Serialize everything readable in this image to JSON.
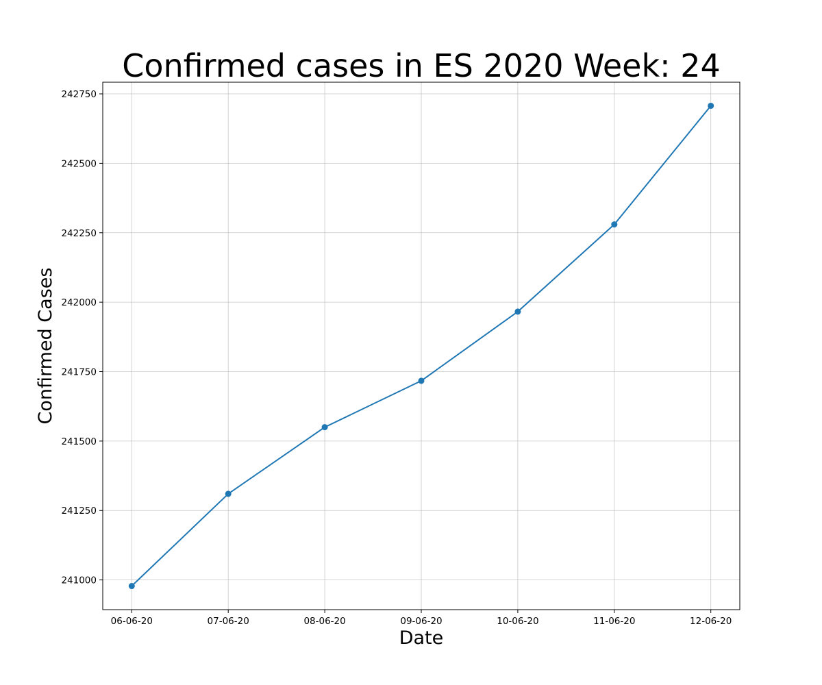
{
  "chart_data": {
    "type": "line",
    "title": "Confirmed cases in ES 2020 Week: 24",
    "xlabel": "Date",
    "ylabel": "Confirmed Cases",
    "categories": [
      "06-06-20",
      "07-06-20",
      "08-06-20",
      "09-06-20",
      "10-06-20",
      "11-06-20",
      "12-06-20"
    ],
    "series": [
      {
        "values": [
          240978,
          241310,
          241550,
          241717,
          241966,
          242280,
          242707
        ],
        "color": "#1f77b4",
        "marker": "circle"
      }
    ],
    "yticks": [
      241000,
      241250,
      241500,
      241750,
      242000,
      242250,
      242500,
      242750
    ],
    "ylim": [
      240893,
      242792
    ],
    "grid": true,
    "legend": false
  }
}
